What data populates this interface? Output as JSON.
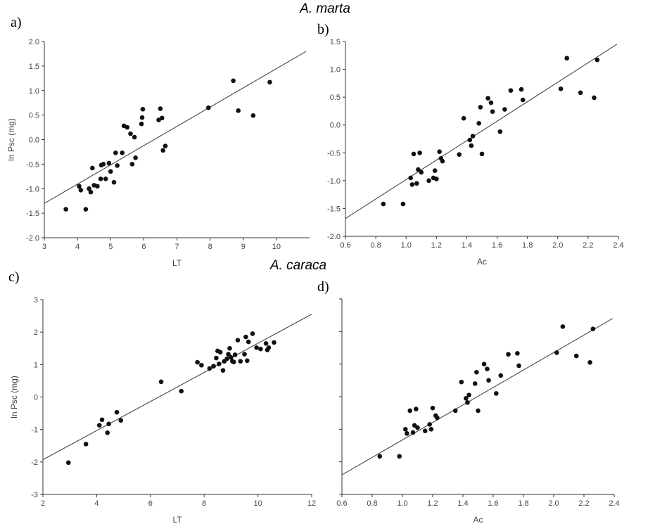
{
  "group_titles": {
    "top": "A. marta",
    "bottom": "A. caraca"
  },
  "panel_labels": {
    "a": "a)",
    "b": "b)",
    "c": "c)",
    "d": "d)"
  },
  "chart_data": [
    {
      "id": "a",
      "type": "scatter",
      "title": "",
      "xlabel": "LT",
      "ylabel": "ln Psc (mg)",
      "xlim": [
        3,
        11
      ],
      "ylim": [
        -2.0,
        2.0
      ],
      "xticks": [
        3,
        4,
        5,
        6,
        7,
        8,
        9,
        10
      ],
      "xtick_labels": [
        "3",
        "4",
        "5",
        "6",
        "7",
        "8",
        "9",
        "10"
      ],
      "yticks": [
        -2.0,
        -1.5,
        -1.0,
        -0.5,
        0.0,
        0.5,
        1.0,
        1.5,
        2.0
      ],
      "ytick_labels": [
        "-2.0",
        "-1.5",
        "-1.0",
        "-0.5",
        "0.0",
        "0.5",
        "1.0",
        "1.5",
        "2.0"
      ],
      "fit_line": {
        "x": [
          3,
          10.9
        ],
        "y": [
          -1.3,
          1.8
        ]
      },
      "points": [
        [
          3.65,
          -1.42
        ],
        [
          4.05,
          -0.95
        ],
        [
          4.1,
          -1.03
        ],
        [
          4.25,
          -1.42
        ],
        [
          4.35,
          -1.0
        ],
        [
          4.4,
          -1.07
        ],
        [
          4.45,
          -0.58
        ],
        [
          4.5,
          -0.93
        ],
        [
          4.6,
          -0.95
        ],
        [
          4.7,
          -0.8
        ],
        [
          4.72,
          -0.52
        ],
        [
          4.78,
          -0.5
        ],
        [
          4.85,
          -0.8
        ],
        [
          4.95,
          -0.48
        ],
        [
          5.0,
          -0.65
        ],
        [
          5.1,
          -0.87
        ],
        [
          5.15,
          -0.27
        ],
        [
          5.2,
          -0.53
        ],
        [
          5.35,
          -0.27
        ],
        [
          5.4,
          0.28
        ],
        [
          5.5,
          0.25
        ],
        [
          5.6,
          0.12
        ],
        [
          5.65,
          -0.5
        ],
        [
          5.72,
          0.05
        ],
        [
          5.75,
          -0.37
        ],
        [
          5.93,
          0.32
        ],
        [
          5.95,
          0.45
        ],
        [
          5.97,
          0.62
        ],
        [
          6.45,
          0.4
        ],
        [
          6.5,
          0.63
        ],
        [
          6.55,
          0.44
        ],
        [
          6.58,
          -0.22
        ],
        [
          6.65,
          -0.13
        ],
        [
          7.95,
          0.65
        ],
        [
          8.7,
          1.2
        ],
        [
          8.85,
          0.59
        ],
        [
          9.3,
          0.49
        ],
        [
          9.8,
          1.17
        ]
      ]
    },
    {
      "id": "b",
      "type": "scatter",
      "title": "",
      "xlabel": "Ac",
      "ylabel": "",
      "xlim": [
        0.6,
        2.4
      ],
      "ylim": [
        -2.0,
        1.5
      ],
      "xticks": [
        0.6,
        0.8,
        1.0,
        1.2,
        1.4,
        1.6,
        1.8,
        2.0,
        2.2,
        2.4
      ],
      "xtick_labels": [
        "0.6",
        "0.8",
        "1.0",
        "1.2",
        "1.4",
        "1.6",
        "1.8",
        "2.0",
        "2.2",
        "2.4"
      ],
      "yticks": [
        -2.0,
        -1.5,
        -1.0,
        -0.5,
        0.0,
        0.5,
        1.0,
        1.5
      ],
      "ytick_labels": [
        "-2.0",
        "-1.5",
        "-1.0",
        "-0.5",
        "0.0",
        "0.5",
        "1.0",
        "1.5"
      ],
      "fit_line": {
        "x": [
          0.6,
          2.39
        ],
        "y": [
          -1.68,
          1.45
        ]
      },
      "points": [
        [
          0.85,
          -1.42
        ],
        [
          0.98,
          -1.42
        ],
        [
          1.03,
          -0.95
        ],
        [
          1.04,
          -1.07
        ],
        [
          1.05,
          -0.52
        ],
        [
          1.07,
          -1.05
        ],
        [
          1.08,
          -0.8
        ],
        [
          1.09,
          -0.5
        ],
        [
          1.1,
          -0.85
        ],
        [
          1.15,
          -1.0
        ],
        [
          1.18,
          -0.95
        ],
        [
          1.19,
          -0.82
        ],
        [
          1.2,
          -0.97
        ],
        [
          1.22,
          -0.48
        ],
        [
          1.23,
          -0.6
        ],
        [
          1.24,
          -0.65
        ],
        [
          1.35,
          -0.53
        ],
        [
          1.38,
          0.12
        ],
        [
          1.42,
          -0.27
        ],
        [
          1.43,
          -0.37
        ],
        [
          1.44,
          -0.2
        ],
        [
          1.48,
          0.03
        ],
        [
          1.49,
          0.32
        ],
        [
          1.5,
          -0.52
        ],
        [
          1.54,
          0.48
        ],
        [
          1.56,
          0.4
        ],
        [
          1.57,
          0.24
        ],
        [
          1.62,
          -0.12
        ],
        [
          1.65,
          0.28
        ],
        [
          1.69,
          0.62
        ],
        [
          1.76,
          0.64
        ],
        [
          1.77,
          0.45
        ],
        [
          2.02,
          0.65
        ],
        [
          2.06,
          1.2
        ],
        [
          2.15,
          0.58
        ],
        [
          2.24,
          0.49
        ],
        [
          2.26,
          1.17
        ]
      ]
    },
    {
      "id": "c",
      "type": "scatter",
      "title": "",
      "xlabel": "LT",
      "ylabel": "ln Psc (mg)",
      "xlim": [
        2,
        12
      ],
      "ylim": [
        -3,
        3
      ],
      "xticks": [
        2,
        4,
        6,
        8,
        10,
        12
      ],
      "xtick_labels": [
        "2",
        "4",
        "6",
        "8",
        "10",
        "12"
      ],
      "yticks": [
        -3,
        -2,
        -1,
        0,
        1,
        2,
        3
      ],
      "ytick_labels": [
        "-3",
        "-2",
        "-1",
        "0",
        "1",
        "2",
        "3"
      ],
      "fit_line": {
        "x": [
          2,
          12
        ],
        "y": [
          -1.93,
          2.55
        ]
      },
      "points": [
        [
          2.95,
          -2.02
        ],
        [
          3.6,
          -1.45
        ],
        [
          4.1,
          -0.87
        ],
        [
          4.2,
          -0.7
        ],
        [
          4.4,
          -1.1
        ],
        [
          4.45,
          -0.83
        ],
        [
          4.75,
          -0.47
        ],
        [
          4.9,
          -0.72
        ],
        [
          6.4,
          0.47
        ],
        [
          7.15,
          0.18
        ],
        [
          7.75,
          1.07
        ],
        [
          7.9,
          0.98
        ],
        [
          8.2,
          0.88
        ],
        [
          8.35,
          0.95
        ],
        [
          8.45,
          1.2
        ],
        [
          8.5,
          1.42
        ],
        [
          8.55,
          1.02
        ],
        [
          8.6,
          1.38
        ],
        [
          8.7,
          0.82
        ],
        [
          8.75,
          1.1
        ],
        [
          8.85,
          1.18
        ],
        [
          8.9,
          1.32
        ],
        [
          8.95,
          1.5
        ],
        [
          9.0,
          1.22
        ],
        [
          9.05,
          1.1
        ],
        [
          9.1,
          1.08
        ],
        [
          9.15,
          1.3
        ],
        [
          9.25,
          1.75
        ],
        [
          9.35,
          1.1
        ],
        [
          9.5,
          1.32
        ],
        [
          9.55,
          1.85
        ],
        [
          9.6,
          1.12
        ],
        [
          9.65,
          1.7
        ],
        [
          9.8,
          1.95
        ],
        [
          9.95,
          1.52
        ],
        [
          10.1,
          1.48
        ],
        [
          10.3,
          1.65
        ],
        [
          10.35,
          1.45
        ],
        [
          10.4,
          1.52
        ],
        [
          10.6,
          1.68
        ]
      ]
    },
    {
      "id": "d",
      "type": "scatter",
      "title": "",
      "xlabel": "Ac",
      "ylabel": "",
      "xlim": [
        0.6,
        2.4
      ],
      "ylim": [
        -3,
        3
      ],
      "xticks": [
        0.6,
        0.8,
        1.0,
        1.2,
        1.4,
        1.6,
        1.8,
        2.0,
        2.2,
        2.4
      ],
      "xtick_labels": [
        "0.6",
        "0.8",
        "1.0",
        "1.2",
        "1.4",
        "1.6",
        "1.8",
        "2.0",
        "2.2",
        "2.4"
      ],
      "yticks": [
        -3,
        -2,
        -1,
        0,
        1,
        2,
        3
      ],
      "ytick_labels": [],
      "fit_line": {
        "x": [
          0.6,
          2.39
        ],
        "y": [
          -2.4,
          2.4
        ]
      },
      "points": [
        [
          0.85,
          -1.83
        ],
        [
          0.98,
          -1.83
        ],
        [
          1.02,
          -1.0
        ],
        [
          1.03,
          -1.13
        ],
        [
          1.05,
          -0.43
        ],
        [
          1.07,
          -1.1
        ],
        [
          1.08,
          -0.88
        ],
        [
          1.09,
          -0.38
        ],
        [
          1.1,
          -0.95
        ],
        [
          1.15,
          -1.05
        ],
        [
          1.18,
          -0.85
        ],
        [
          1.19,
          -1.0
        ],
        [
          1.2,
          -0.35
        ],
        [
          1.22,
          -0.58
        ],
        [
          1.23,
          -0.65
        ],
        [
          1.35,
          -0.43
        ],
        [
          1.39,
          0.45
        ],
        [
          1.42,
          -0.05
        ],
        [
          1.43,
          -0.18
        ],
        [
          1.44,
          0.05
        ],
        [
          1.48,
          0.4
        ],
        [
          1.49,
          0.75
        ],
        [
          1.5,
          -0.43
        ],
        [
          1.54,
          1.0
        ],
        [
          1.56,
          0.85
        ],
        [
          1.57,
          0.5
        ],
        [
          1.62,
          0.1
        ],
        [
          1.65,
          0.65
        ],
        [
          1.7,
          1.3
        ],
        [
          1.76,
          1.33
        ],
        [
          1.77,
          0.95
        ],
        [
          2.02,
          1.35
        ],
        [
          2.06,
          2.15
        ],
        [
          2.15,
          1.25
        ],
        [
          2.24,
          1.05
        ],
        [
          2.26,
          2.08
        ]
      ]
    }
  ]
}
